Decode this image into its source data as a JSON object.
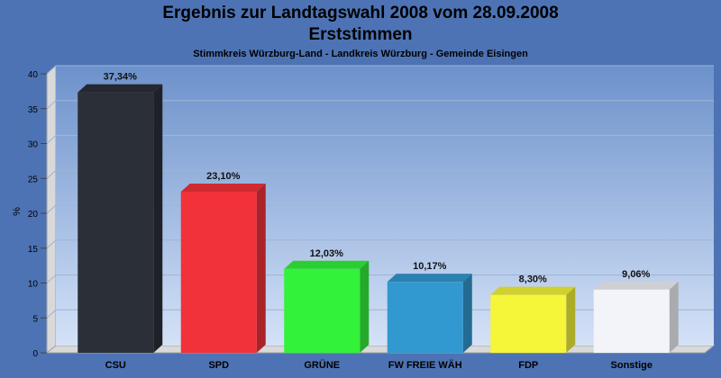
{
  "chart_data": {
    "type": "bar",
    "title": "Ergebnis zur Landtagswahl 2008 vom 28.09.2008",
    "title_line2": "Erststimmen",
    "subtitle": "Stimmkreis Würzburg-Land - Landkreis Würzburg - Gemeinde Eisingen",
    "ylabel": "%",
    "ylim": [
      0,
      40
    ],
    "yticks": [
      "0",
      "5",
      "10",
      "15",
      "20",
      "25",
      "30",
      "35",
      "40"
    ],
    "grid": true,
    "categories": [
      "CSU",
      "SPD",
      "GRÜNE",
      "FW FREIE WÄH",
      "FDP",
      "Sonstige"
    ],
    "values": [
      37.34,
      23.1,
      12.03,
      10.17,
      8.3,
      9.06
    ],
    "value_labels": [
      "37,34%",
      "23,10%",
      "12,03%",
      "10,17%",
      "8,30%",
      "9,06%"
    ],
    "colors": [
      "#2b2f38",
      "#f2323a",
      "#33f23a",
      "#3299d0",
      "#f5f53a",
      "#f2f4fa"
    ]
  }
}
